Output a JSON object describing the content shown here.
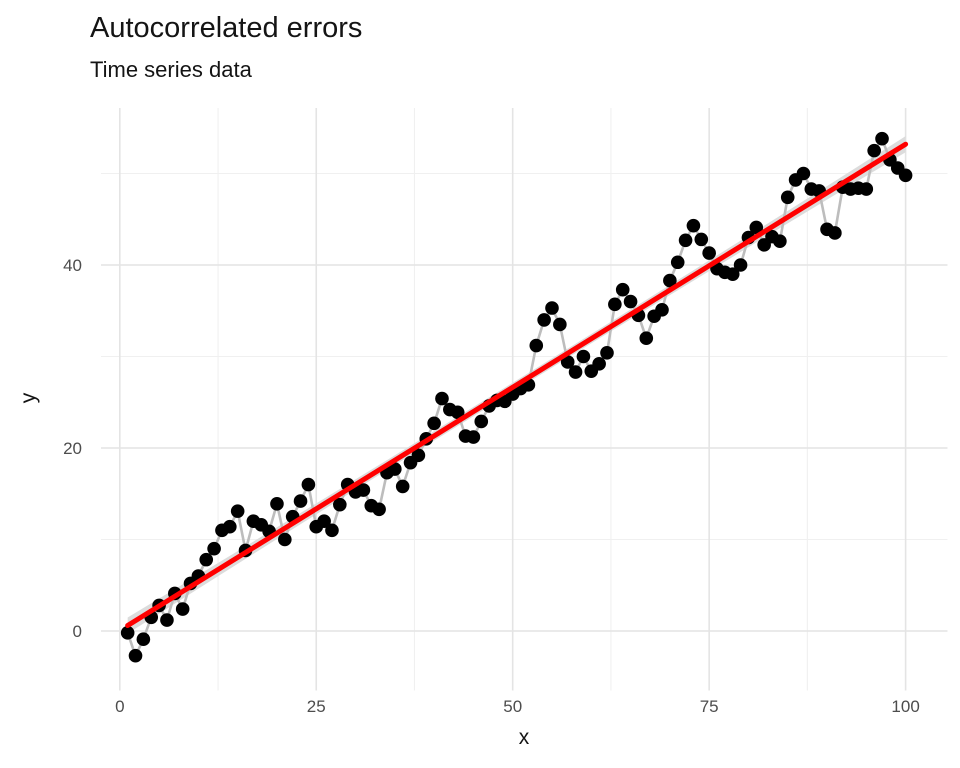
{
  "header": {
    "title": "Autocorrelated errors",
    "subtitle": "Time series data"
  },
  "axes": {
    "x": {
      "label": "x",
      "major_ticks": [
        0,
        25,
        50,
        75,
        100
      ],
      "minor_ticks": [
        12.5,
        37.5,
        62.5,
        87.5
      ]
    },
    "y": {
      "label": "y",
      "major_ticks": [
        0,
        20,
        40
      ],
      "minor_ticks": [
        10,
        30,
        50
      ]
    }
  },
  "colors": {
    "background": "#ffffff",
    "grid_major": "#e4e4e4",
    "grid_minor": "#f0f0f0",
    "series_line": "#bdbdbd",
    "point": "#000000",
    "trend_line": "#ff0000",
    "confidence_band": "#dcdcdc",
    "tick_text": "#4d4d4d",
    "title_text": "#141414"
  },
  "chart_data": {
    "type": "scatter",
    "title": "Autocorrelated errors",
    "subtitle": "Time series data",
    "xlabel": "x",
    "ylabel": "y",
    "xlim": [
      -2.4,
      105.2
    ],
    "ylim": [
      -6.5,
      57.2
    ],
    "grid": true,
    "legend": false,
    "x": [
      1,
      2,
      3,
      4,
      5,
      6,
      7,
      8,
      9,
      10,
      11,
      12,
      13,
      14,
      15,
      16,
      17,
      18,
      19,
      20,
      21,
      22,
      23,
      24,
      25,
      26,
      27,
      28,
      29,
      30,
      31,
      32,
      33,
      34,
      35,
      36,
      37,
      38,
      39,
      40,
      41,
      42,
      43,
      44,
      45,
      46,
      47,
      48,
      49,
      50,
      51,
      52,
      53,
      54,
      55,
      56,
      57,
      58,
      59,
      60,
      61,
      62,
      63,
      64,
      65,
      66,
      67,
      68,
      69,
      70,
      71,
      72,
      73,
      74,
      75,
      76,
      77,
      78,
      79,
      80,
      81,
      82,
      83,
      84,
      85,
      86,
      87,
      88,
      89,
      90,
      91,
      92,
      93,
      94,
      95,
      96,
      97,
      98,
      99,
      100
    ],
    "series": [
      {
        "name": "observations",
        "style": "points-with-gray-line",
        "values": [
          -0.2,
          -2.7,
          -0.9,
          1.5,
          2.8,
          1.2,
          4.1,
          2.4,
          5.2,
          6.0,
          7.8,
          9.0,
          11.0,
          11.4,
          13.1,
          8.8,
          12.0,
          11.6,
          10.9,
          13.9,
          10.0,
          12.5,
          14.2,
          16.0,
          11.4,
          12.0,
          11.0,
          13.8,
          16.0,
          15.2,
          15.4,
          13.7,
          13.3,
          17.3,
          17.7,
          15.8,
          18.4,
          19.2,
          21.0,
          22.7,
          25.4,
          24.2,
          23.9,
          21.3,
          21.2,
          22.9,
          24.6,
          25.2,
          25.1,
          25.9,
          26.5,
          26.9,
          31.2,
          34.0,
          35.3,
          33.5,
          29.4,
          28.3,
          30.0,
          28.4,
          29.2,
          30.4,
          35.7,
          37.3,
          36.0,
          34.5,
          32.0,
          34.4,
          35.1,
          38.3,
          40.3,
          42.7,
          44.3,
          42.8,
          41.3,
          39.6,
          39.2,
          39.0,
          40.0,
          43.0,
          44.1,
          42.2,
          43.1,
          42.6,
          47.4,
          49.3,
          50.0,
          48.3,
          48.1,
          43.9,
          43.5,
          48.5,
          48.3,
          48.4,
          48.3,
          52.5,
          53.8,
          51.5,
          50.6,
          49.8
        ]
      },
      {
        "name": "linear-trend",
        "style": "straight-red-line-with-confidence-band",
        "x": [
          1,
          100
        ],
        "values": [
          0.6,
          53.2
        ]
      }
    ]
  }
}
